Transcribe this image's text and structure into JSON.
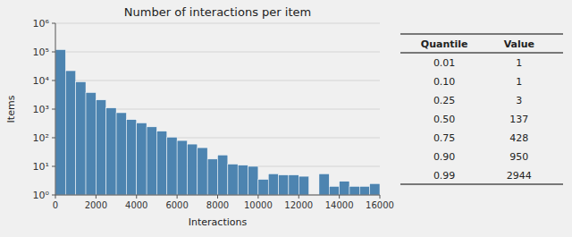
{
  "chart_data": [
    {
      "type": "histogram",
      "title": "Number of interactions per item",
      "xlabel": "Interactions",
      "ylabel": "Items",
      "color": "#4d84b0",
      "bins": [
        0,
        500,
        1000,
        1500,
        2000,
        2500,
        3000,
        3500,
        4000,
        4500,
        5000,
        5500,
        6000,
        6500,
        7000,
        7500,
        8000,
        8500,
        9000,
        9500,
        10000,
        10500,
        11000,
        11500,
        12000,
        12500,
        13000,
        13500,
        14000,
        14500,
        15000,
        15500,
        16000
      ],
      "values": [
        120000,
        22000,
        9000,
        3800,
        2100,
        1100,
        750,
        430,
        330,
        240,
        170,
        105,
        80,
        60,
        45,
        18,
        25,
        12,
        11,
        10,
        3.5,
        5.5,
        5,
        5,
        4.5,
        1,
        5.5,
        2,
        3,
        2,
        2,
        2.5
      ],
      "xlim": [
        0,
        16000
      ],
      "xticks": [
        0,
        2000,
        4000,
        6000,
        8000,
        10000,
        12000,
        14000,
        16000
      ],
      "ylim": [
        1,
        1000000
      ],
      "yticks": [
        {
          "value": 1,
          "label": "10⁰"
        },
        {
          "value": 10,
          "label": "10¹"
        },
        {
          "value": 100,
          "label": "10²"
        },
        {
          "value": 1000,
          "label": "10³"
        },
        {
          "value": 10000,
          "label": "10⁴"
        },
        {
          "value": 100000,
          "label": "10⁵"
        },
        {
          "value": 1000000,
          "label": "10⁶"
        }
      ],
      "log": "y",
      "grid": true
    },
    {
      "type": "table",
      "columns": [
        "Quantile",
        "Value"
      ],
      "categories": [
        "0.01",
        "0.10",
        "0.25",
        "0.50",
        "0.75",
        "0.90",
        "0.99"
      ],
      "values": [
        1,
        1,
        3,
        137,
        428,
        950,
        2944
      ]
    }
  ]
}
